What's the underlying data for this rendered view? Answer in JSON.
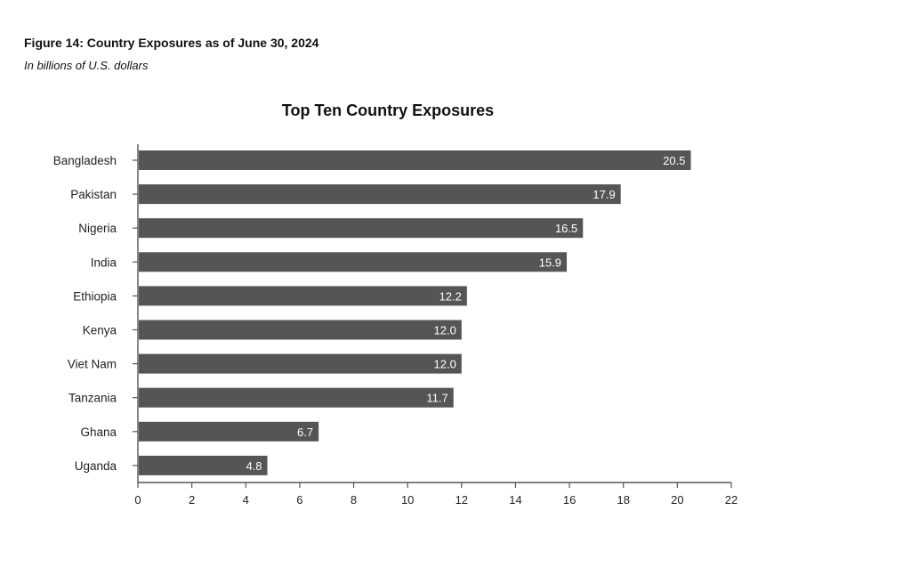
{
  "figure": {
    "title": "Figure 14: Country Exposures as of June 30, 2024",
    "subtitle": "In billions of U.S. dollars"
  },
  "chart_data": {
    "type": "bar",
    "orientation": "horizontal",
    "title": "Top Ten Country Exposures",
    "xlabel": "",
    "ylabel": "",
    "categories": [
      "Bangladesh",
      "Pakistan",
      "Nigeria",
      "India",
      "Ethiopia",
      "Kenya",
      "Viet Nam",
      "Tanzania",
      "Ghana",
      "Uganda"
    ],
    "values": [
      20.5,
      17.9,
      16.5,
      15.9,
      12.2,
      12.0,
      12.0,
      11.7,
      6.7,
      4.8
    ],
    "value_labels": [
      "20.5",
      "17.9",
      "16.5",
      "15.9",
      "12.2",
      "12.0",
      "12.0",
      "11.7",
      "6.7",
      "4.8"
    ],
    "xlim": [
      0,
      22
    ],
    "xticks": [
      0,
      2,
      4,
      6,
      8,
      10,
      12,
      14,
      16,
      18,
      20,
      22
    ],
    "grid": false,
    "legend": "none",
    "bar_color": "#555555",
    "label_color": "#ffffff"
  }
}
